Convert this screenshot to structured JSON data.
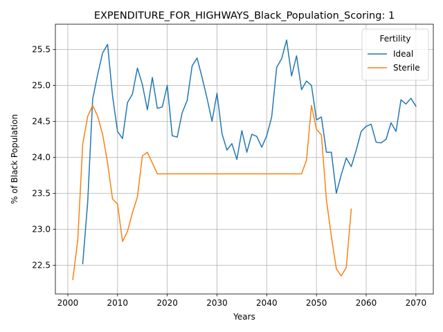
{
  "chart_data": {
    "type": "line",
    "title": "EXPENDITURE_FOR_HIGHWAYS_Black_Population_Scoring: 1",
    "xlabel": "Years",
    "ylabel": "% of Black Population",
    "xlim": [
      1997.5,
      2073.5
    ],
    "ylim": [
      22.1,
      25.85
    ],
    "xticks": [
      2000,
      2010,
      2020,
      2030,
      2040,
      2050,
      2060,
      2070
    ],
    "yticks": [
      22.5,
      23.0,
      23.5,
      24.0,
      24.5,
      25.0,
      25.5
    ],
    "xtick_labels": [
      "2000",
      "2010",
      "2020",
      "2030",
      "2040",
      "2050",
      "2060",
      "2070"
    ],
    "ytick_labels": [
      "22.5",
      "23.0",
      "23.5",
      "24.0",
      "24.5",
      "25.0",
      "25.5"
    ],
    "grid": true,
    "legend": {
      "title": "Fertility",
      "position": "top-right"
    },
    "series": [
      {
        "name": "Ideal",
        "color": "#1f77b4",
        "x": [
          2003,
          2004,
          2005,
          2006,
          2007,
          2008,
          2009,
          2010,
          2011,
          2012,
          2013,
          2014,
          2015,
          2016,
          2017,
          2018,
          2019,
          2020,
          2021,
          2022,
          2023,
          2024,
          2025,
          2026,
          2027,
          2028,
          2029,
          2030,
          2031,
          2032,
          2033,
          2034,
          2035,
          2036,
          2037,
          2038,
          2039,
          2040,
          2041,
          2042,
          2043,
          2044,
          2045,
          2046,
          2047,
          2048,
          2049,
          2050,
          2051,
          2052,
          2053,
          2054,
          2055,
          2056,
          2057,
          2058,
          2059,
          2060,
          2061,
          2062,
          2063,
          2064,
          2065,
          2066,
          2067,
          2068,
          2069,
          2070
        ],
        "values": [
          22.52,
          23.38,
          24.81,
          25.15,
          25.45,
          25.57,
          24.85,
          24.36,
          24.26,
          24.76,
          24.88,
          25.24,
          25.01,
          24.66,
          25.11,
          24.68,
          24.7,
          25.0,
          24.3,
          24.28,
          24.62,
          24.79,
          25.27,
          25.38,
          25.11,
          24.82,
          24.5,
          24.89,
          24.33,
          24.1,
          24.19,
          23.97,
          24.37,
          24.07,
          24.32,
          24.29,
          24.14,
          24.3,
          24.56,
          25.25,
          25.37,
          25.63,
          25.13,
          25.41,
          24.94,
          25.06,
          25.0,
          24.52,
          24.56,
          24.07,
          24.07,
          23.5,
          23.76,
          23.99,
          23.87,
          24.1,
          24.36,
          24.43,
          24.46,
          24.21,
          24.2,
          24.25,
          24.48,
          24.36,
          24.8,
          24.74,
          24.82,
          24.71
        ]
      },
      {
        "name": "Sterile",
        "color": "#ff7f0e",
        "x": [
          2001,
          2002,
          2003,
          2004,
          2005,
          2006,
          2007,
          2008,
          2009,
          2010,
          2011,
          2012,
          2013,
          2014,
          2015,
          2016,
          2017,
          2018,
          2019,
          2020,
          2021,
          2022,
          2023,
          2024,
          2025,
          2026,
          2027,
          2028,
          2029,
          2030,
          2031,
          2032,
          2033,
          2034,
          2035,
          2036,
          2037,
          2038,
          2039,
          2040,
          2041,
          2042,
          2043,
          2044,
          2045,
          2046,
          2047,
          2048,
          2049,
          2050,
          2051,
          2052,
          2053,
          2054,
          2055,
          2056,
          2057
        ],
        "values": [
          22.3,
          22.85,
          24.18,
          24.57,
          24.72,
          24.57,
          24.32,
          23.92,
          23.42,
          23.35,
          22.83,
          22.97,
          23.23,
          23.45,
          24.02,
          24.07,
          23.92,
          23.77,
          23.77,
          23.77,
          23.77,
          23.77,
          23.77,
          23.77,
          23.77,
          23.77,
          23.77,
          23.77,
          23.77,
          23.77,
          23.77,
          23.77,
          23.77,
          23.77,
          23.77,
          23.77,
          23.77,
          23.77,
          23.77,
          23.77,
          23.77,
          23.77,
          23.77,
          23.77,
          23.77,
          23.77,
          23.77,
          23.96,
          24.72,
          24.39,
          24.31,
          23.41,
          22.9,
          22.45,
          22.35,
          22.47,
          23.28
        ]
      }
    ]
  }
}
